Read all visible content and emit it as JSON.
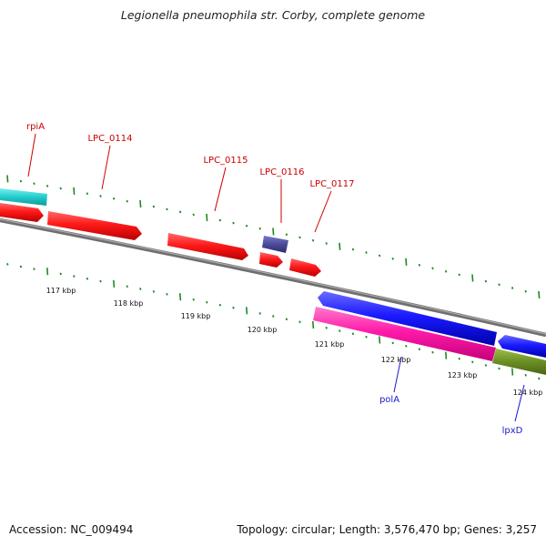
{
  "title": "Legionella pneumophila str. Corby, complete genome",
  "footer": {
    "accession": "Accession: NC_009494",
    "stats": "Topology: circular; Length: 3,576,470 bp; Genes: 3,257"
  },
  "scale_labels": [
    "117 kbp",
    "118 kbp",
    "119 kbp",
    "120 kbp",
    "121 kbp",
    "122 kbp",
    "123 kbp",
    "124 kbp"
  ],
  "gene_labels": [
    {
      "name": "rpiA",
      "color": "#cc0000"
    },
    {
      "name": "LPC_0114",
      "color": "#cc0000"
    },
    {
      "name": "LPC_0115",
      "color": "#cc0000"
    },
    {
      "name": "LPC_0116",
      "color": "#cc0000"
    },
    {
      "name": "LPC_0117",
      "color": "#cc0000"
    },
    {
      "name": "polA",
      "color": "#1a1acc"
    },
    {
      "name": "lpxD",
      "color": "#1a1acc"
    }
  ],
  "colors": {
    "backbone": "#888888",
    "ticks": "#228822",
    "forward_gene": "#ff1a1a",
    "reverse_gene": "#1a1aff",
    "rna_gene": "#ff1aaa",
    "other_gene": "#4a4a99",
    "cyan_feature": "#22cccc",
    "olive_feature": "#6b8e23"
  }
}
